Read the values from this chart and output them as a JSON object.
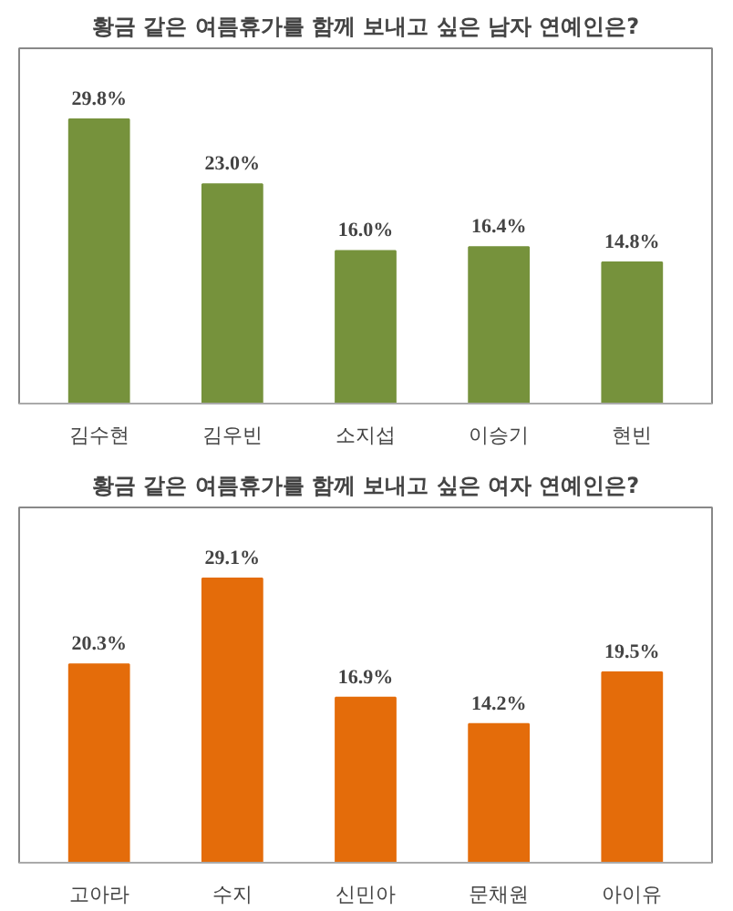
{
  "chart_data": [
    {
      "type": "bar",
      "title": "황금 같은 여름휴가를 함께 보내고 싶은 남자 연예인은?",
      "categories": [
        "김수현",
        "김우빈",
        "소지섭",
        "이승기",
        "현빈"
      ],
      "series": [
        {
          "color": "#76923c",
          "values": [
            29.8,
            23.0,
            16.0,
            16.4,
            14.8
          ],
          "value_labels": [
            "29.8%",
            "23.0%",
            "16.0%",
            "16.4%",
            "14.8%"
          ]
        }
      ]
    },
    {
      "type": "bar",
      "title": "황금 같은 여름휴가를 함께 보내고 싶은 여자 연예인은?",
      "categories": [
        "고아라",
        "수지",
        "신민아",
        "문채원",
        "아이유"
      ],
      "series": [
        {
          "color": "#e46c0a",
          "values": [
            20.3,
            29.1,
            16.9,
            14.2,
            19.5
          ],
          "value_labels": [
            "20.3%",
            "29.1%",
            "16.9%",
            "14.2%",
            "19.5%"
          ]
        }
      ]
    }
  ]
}
